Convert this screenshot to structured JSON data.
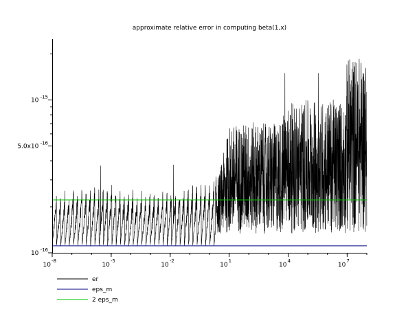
{
  "chart_data": {
    "type": "line",
    "title": "approximate relative error in computing beta(1,x)",
    "xlabel": "",
    "ylabel": "",
    "x_scale": "log",
    "y_scale": "log",
    "xlim": [
      1e-08,
      100000000.0
    ],
    "ylim": [
      1e-16,
      2.5e-15
    ],
    "grid": false,
    "legend_position": "bottom-left",
    "x_ticks": [
      {
        "base": "10",
        "exp": "-8",
        "value": 1e-08
      },
      {
        "base": "10",
        "exp": "-5",
        "value": 1e-05
      },
      {
        "base": "10",
        "exp": "-2",
        "value": 0.01
      },
      {
        "base": "10",
        "exp": "1",
        "value": 10
      },
      {
        "base": "10",
        "exp": "4",
        "value": 10000.0
      },
      {
        "base": "10",
        "exp": "7",
        "value": 10000000.0
      }
    ],
    "y_ticks": [
      {
        "base": "10",
        "exp": "-16",
        "value": 1e-16
      },
      {
        "base": "5.0x10",
        "exp": "-16",
        "value": 5e-16
      },
      {
        "base": "10",
        "exp": "-15",
        "value": 1e-15
      }
    ],
    "series": [
      {
        "name": "er",
        "color": "#000000",
        "style": "dense-oscillation",
        "floor": 1.11e-16,
        "envelope": {
          "x": [
            1e-08,
            1e-07,
            1e-06,
            1e-05,
            0.0001,
            0.001,
            0.01,
            0.1,
            1,
            3,
            10,
            100,
            1000.0,
            3000.0,
            10000.0,
            100000.0,
            1000000.0,
            8000000.0,
            10000000.0,
            100000000.0
          ],
          "y": [
            2.5e-16,
            2.7e-16,
            2.8e-16,
            2.9e-16,
            2.7e-16,
            2.6e-16,
            2.7e-16,
            2.9e-16,
            3.1e-16,
            3.2e-16,
            6.8e-16,
            7.2e-16,
            7e-16,
            7e-16,
            9.5e-16,
            1e-15,
            1e-15,
            1.02e-15,
            1.95e-15,
            1.95e-15
          ]
        },
        "spike_max": 1.5e-15
      },
      {
        "name": "eps_m",
        "color": "#000080",
        "value": 1.11e-16
      },
      {
        "name": "2 eps_m",
        "color": "#00c000",
        "value": 2.22e-16
      }
    ]
  }
}
